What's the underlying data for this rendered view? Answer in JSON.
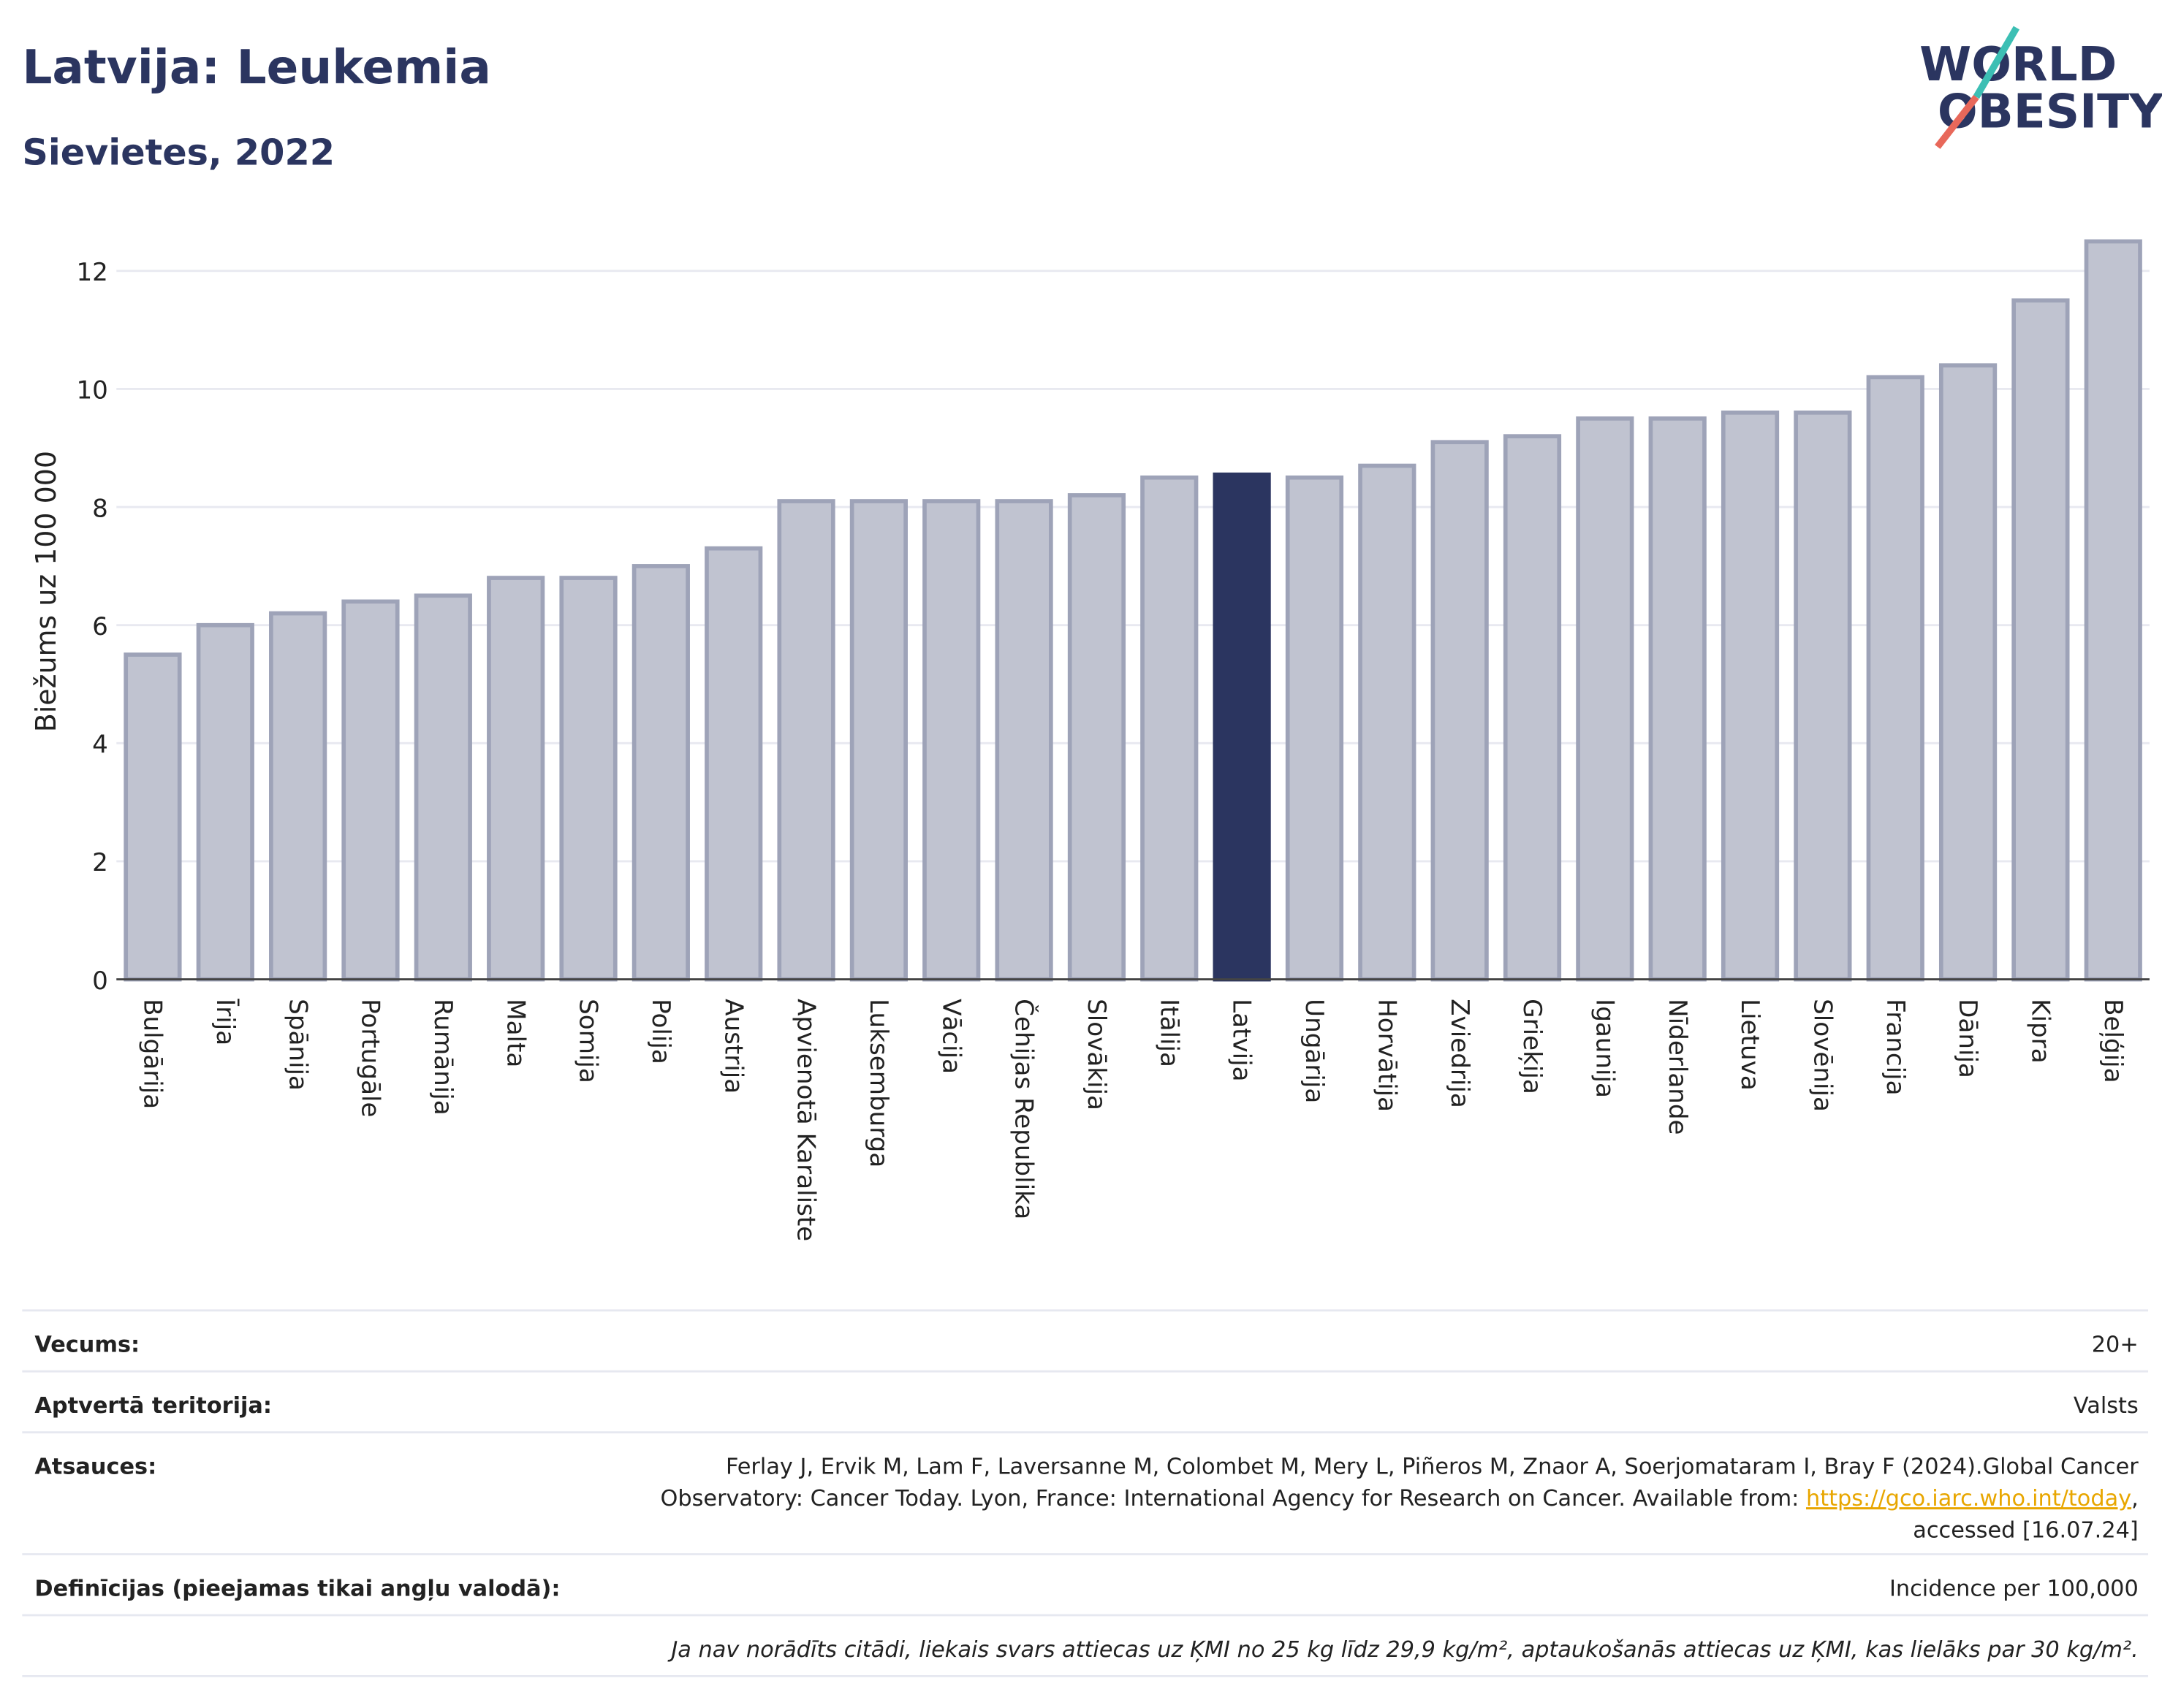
{
  "title": "Latvija: Leukemia",
  "subtitle": "Sievietes, 2022",
  "logo": [
    "WORLD",
    "OBESITY"
  ],
  "chart_data": {
    "type": "bar",
    "y_label": "Biežums uz 100 000",
    "categories": [
      "Bulgārija",
      "Īrija",
      "Spānija",
      "Portugāle",
      "Rumānija",
      "Malta",
      "Somija",
      "Polija",
      "Austrija",
      "Apvienotā Karaliste",
      "Luksemburga",
      "Vācija",
      "Čehijas Republika",
      "Slovākija",
      "Itālija",
      "Latvija",
      "Ungārija",
      "Horvātija",
      "Zviedrija",
      "Grieķija",
      "Igaunija",
      "Nīderlande",
      "Lietuva",
      "Slovēnija",
      "Francija",
      "Dānija",
      "Kipra",
      "Beļģija"
    ],
    "values": [
      5.5,
      6.0,
      6.2,
      6.4,
      6.5,
      6.8,
      6.8,
      7.0,
      7.3,
      8.1,
      8.1,
      8.1,
      8.1,
      8.2,
      8.5,
      8.55,
      8.5,
      8.7,
      9.1,
      9.2,
      9.5,
      9.5,
      9.6,
      9.6,
      10.2,
      10.4,
      11.5,
      12.5
    ],
    "color": "#c0c3d0",
    "edge_color": "#9ea3b8",
    "highlight_category": "Latvija",
    "highlight_color": "#2b3560",
    "ylim": [
      0,
      12.6
    ],
    "yticks": [
      0,
      2,
      4,
      6,
      8,
      10,
      12
    ],
    "grid": true
  },
  "info": {
    "age": {
      "label": "Vecums:",
      "value": "20+"
    },
    "territory": {
      "label": "Aptvertā teritorija:",
      "value": "Valsts"
    },
    "references": {
      "label": "Atsauces:",
      "line1": "Ferlay J, Ervik M, Lam F, Laversanne M, Colombet M, Mery L, Piñeros M, Znaor A, Soerjomataram I, Bray F (2024).Global Cancer",
      "line2": "Observatory: Cancer Today. Lyon, France: International Agency for Research on Cancer. Available from: ",
      "link": "https://gco.iarc.who.int/today",
      "line2_end": ",",
      "line3": "accessed [16.07.24]"
    },
    "definitions": {
      "label": "Definīcijas (pieejamas tikai angļu valodā):",
      "value": "Incidence per 100,000"
    },
    "note": "Ja nav norādīts citādi, liekais svars attiecas uz ĶMI no 25 kg līdz 29,9 kg/m², aptaukošanās attiecas uz ĶMI, kas lielāks par 30 kg/m²."
  }
}
